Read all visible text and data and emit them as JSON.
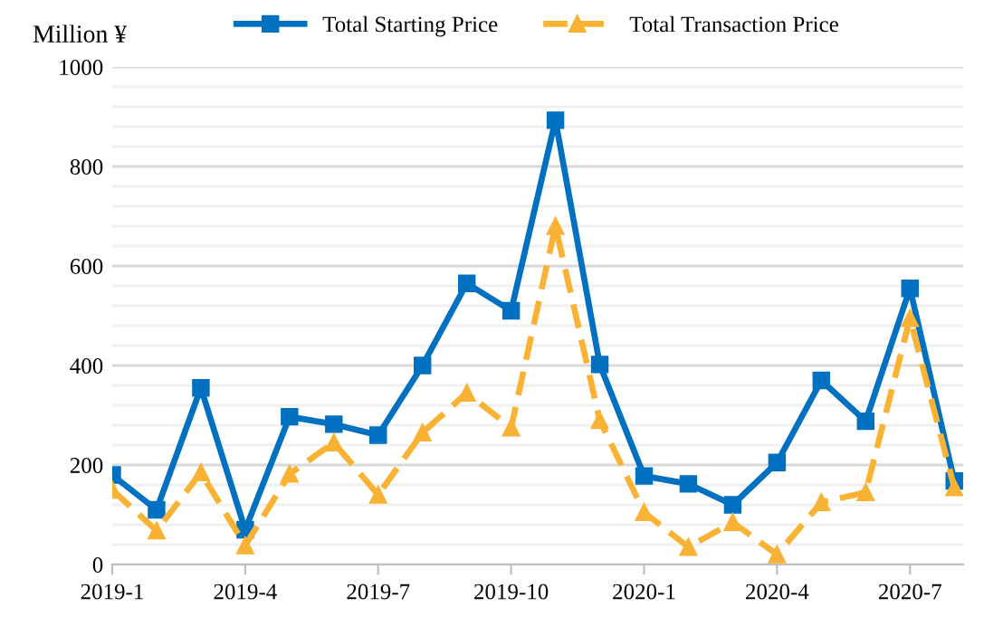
{
  "chart_data": {
    "type": "line",
    "ylabel": "Million ¥",
    "categories": [
      "2019-1",
      null,
      null,
      "2019-4",
      null,
      null,
      "2019-7",
      null,
      null,
      "2019-10",
      null,
      null,
      "2020-1",
      null,
      null,
      "2020-4",
      null,
      null,
      "2020-7",
      null
    ],
    "series": [
      {
        "name": "Total Starting Price",
        "color": "#0070c0",
        "marker": "square",
        "line_style": "solid",
        "values": [
          180,
          110,
          355,
          70,
          297,
          282,
          260,
          400,
          565,
          510,
          893,
          402,
          178,
          162,
          120,
          205,
          370,
          288,
          555,
          168
        ]
      },
      {
        "name": "Total Transaction Price",
        "color": "#f9b233",
        "marker": "triangle",
        "line_style": "dashed",
        "values": [
          150,
          68,
          185,
          38,
          182,
          245,
          140,
          265,
          345,
          275,
          680,
          290,
          105,
          35,
          85,
          20,
          125,
          145,
          495,
          155
        ]
      }
    ],
    "ylim": [
      0,
      1000
    ],
    "yticks": [
      0,
      {
        "value": 40,
        "label": null
      },
      {
        "value": 80,
        "label": null
      },
      {
        "value": 120,
        "label": null
      },
      {
        "value": 160,
        "label": null
      },
      200,
      {
        "value": 240,
        "label": null
      },
      {
        "value": 280,
        "label": null
      },
      {
        "value": 320,
        "label": null
      },
      {
        "value": 360,
        "label": null
      },
      400,
      {
        "value": 440,
        "label": null
      },
      {
        "value": 480,
        "label": null
      },
      {
        "value": 520,
        "label": null
      },
      {
        "value": 560,
        "label": null
      },
      600,
      {
        "value": 640,
        "label": null
      },
      {
        "value": 680,
        "label": null
      },
      {
        "value": 720,
        "label": null
      },
      {
        "value": 760,
        "label": null
      },
      800,
      {
        "value": 840,
        "label": null
      },
      {
        "value": 880,
        "label": null
      },
      {
        "value": 920,
        "label": null
      },
      {
        "value": 960,
        "label": null
      },
      1000
    ],
    "grid": "y",
    "legend": "top"
  }
}
